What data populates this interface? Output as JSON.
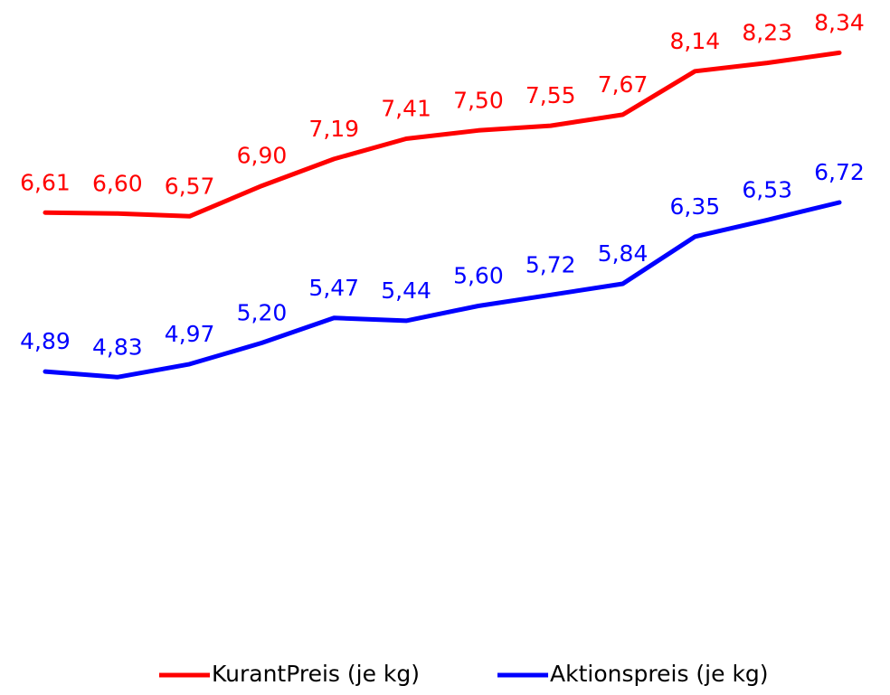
{
  "chart_data": {
    "type": "line",
    "categories": [
      null,
      null,
      null,
      null,
      null,
      null,
      null,
      null,
      null,
      null,
      null,
      null
    ],
    "series": [
      {
        "name": "KurantPreis (je kg)",
        "color": "#ff0000",
        "values": [
          6.61,
          6.6,
          6.57,
          6.9,
          7.19,
          7.41,
          7.5,
          7.55,
          7.67,
          8.14,
          8.23,
          8.34
        ],
        "value_labels": [
          "6,61",
          "6,60",
          "6,57",
          "6,90",
          "7,19",
          "7,41",
          "7,50",
          "7,55",
          "7,67",
          "8,14",
          "8,23",
          "8,34"
        ]
      },
      {
        "name": "Aktionspreis (je kg)",
        "color": "#0000ff",
        "values": [
          4.89,
          4.83,
          4.97,
          5.2,
          5.47,
          5.44,
          5.6,
          5.72,
          5.84,
          6.35,
          6.53,
          6.72
        ],
        "value_labels": [
          "4,89",
          "4,83",
          "4,97",
          "5,20",
          "5,47",
          "5,44",
          "5,60",
          "5,72",
          "5,84",
          "6,35",
          "6,53",
          "6,72"
        ]
      }
    ],
    "ylim": [
      4.5,
      8.5
    ],
    "legend": "bottom"
  }
}
